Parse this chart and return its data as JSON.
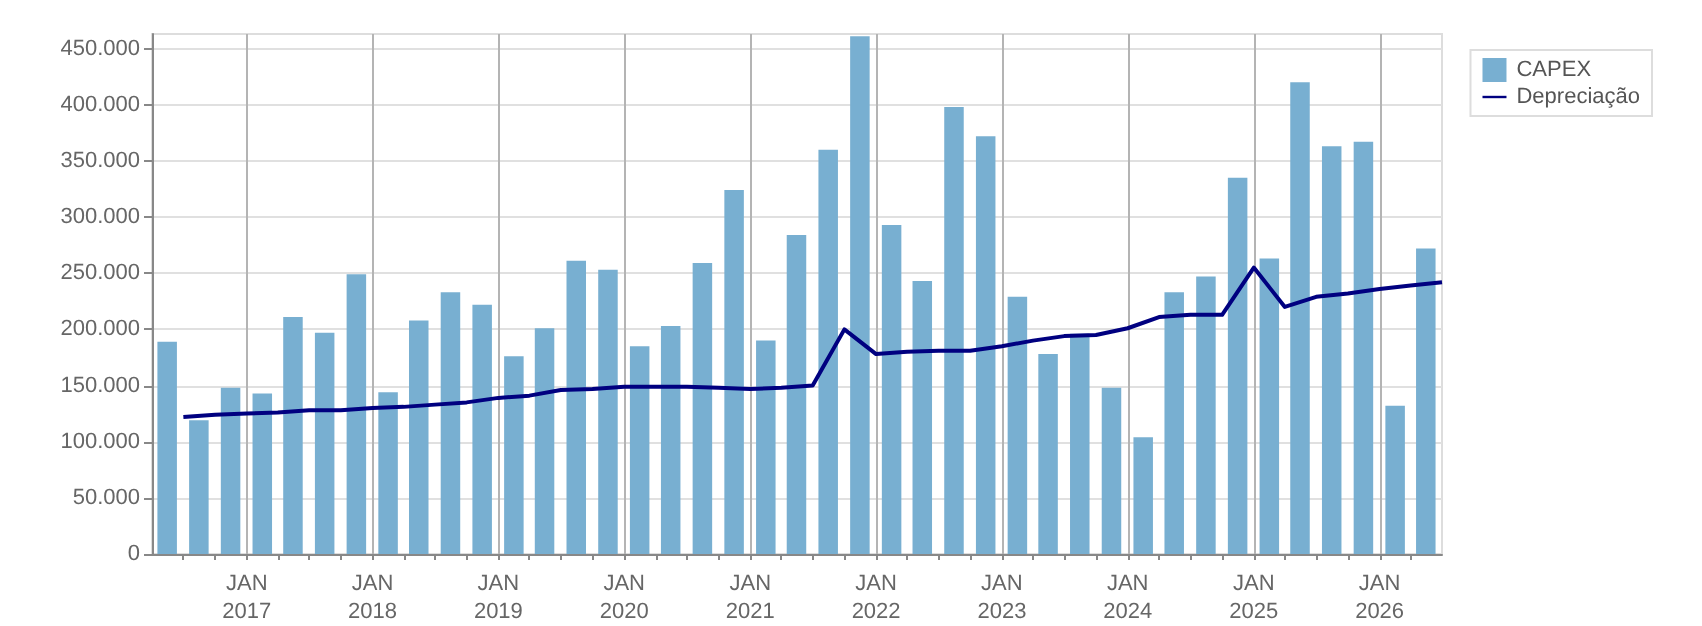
{
  "chart_data": {
    "type": "bar",
    "x": [
      "2016-05-15",
      "2016-08-15",
      "2016-11-15",
      "2017-02-15",
      "2017-05-15",
      "2017-08-15",
      "2017-11-15",
      "2018-02-15",
      "2018-05-15",
      "2018-08-15",
      "2018-11-15",
      "2019-02-15",
      "2019-05-15",
      "2019-08-15",
      "2019-11-15",
      "2020-02-15",
      "2020-05-15",
      "2020-08-15",
      "2020-11-15",
      "2021-02-15",
      "2021-05-15",
      "2021-08-15",
      "2021-11-15",
      "2022-02-15",
      "2022-05-15",
      "2022-08-15",
      "2022-11-15",
      "2023-02-15",
      "2023-05-15",
      "2023-08-15",
      "2023-11-15",
      "2024-02-15",
      "2024-05-15",
      "2024-08-15",
      "2024-11-15",
      "2025-02-15",
      "2025-05-15",
      "2025-08-15",
      "2025-11-15",
      "2026-02-15",
      "2026-05-15"
    ],
    "series": [
      {
        "name": "CAPEX",
        "color": "#78afd1",
        "values": [
          189000,
          119000,
          148000,
          143000,
          211000,
          197000,
          249000,
          144000,
          208000,
          233000,
          222000,
          176000,
          201000,
          261000,
          253000,
          185000,
          203000,
          259000,
          324000,
          190000,
          284000,
          360000,
          461000,
          293000,
          243000,
          398000,
          372000,
          229000,
          178000,
          196000,
          148000,
          104000,
          233000,
          247000,
          335000,
          263000,
          420000,
          363000,
          367000,
          132000,
          272000
        ]
      },
      {
        "name": "Depreciação",
        "type": "line",
        "color": "#000080",
        "marker": "none",
        "x": [
          "2016-07-01",
          "2016-10-01",
          "2017-01-01",
          "2017-04-01",
          "2017-07-01",
          "2017-10-01",
          "2018-01-01",
          "2018-04-01",
          "2018-07-01",
          "2018-10-01",
          "2019-01-01",
          "2019-04-01",
          "2019-07-01",
          "2019-10-01",
          "2020-01-01",
          "2020-04-01",
          "2020-07-01",
          "2020-10-01",
          "2021-01-01",
          "2021-04-01",
          "2021-07-01",
          "2021-10-01",
          "2022-01-01",
          "2022-04-01",
          "2022-07-01",
          "2022-10-01",
          "2023-01-01",
          "2023-04-01",
          "2023-07-01",
          "2023-10-01",
          "2024-01-01",
          "2024-04-01",
          "2024-07-01",
          "2024-10-01",
          "2025-01-01",
          "2025-04-01",
          "2025-07-01",
          "2025-10-01",
          "2026-01-01",
          "2026-04-01",
          "2026-07-01"
        ],
        "values": [
          122000,
          124000,
          125000,
          126000,
          128000,
          128000,
          130000,
          131000,
          133000,
          135000,
          139000,
          141000,
          146000,
          147000,
          149000,
          149000,
          149000,
          148000,
          147000,
          148000,
          150000,
          200000,
          178000,
          180000,
          181000,
          181000,
          185000,
          190000,
          194000,
          195000,
          201000,
          211000,
          213000,
          213000,
          255000,
          220000,
          229000,
          232000,
          236000,
          239000,
          242000
        ]
      }
    ],
    "xlim": [
      "2016-04-01",
      "2026-07-01"
    ],
    "xticks": [
      {
        "value": "2016-07-01",
        "label": null
      },
      {
        "value": "2016-10-01",
        "label": null
      },
      {
        "value": "2017-01-01",
        "label": "JAN\n2017"
      },
      {
        "value": "2017-04-01",
        "label": null
      },
      {
        "value": "2017-07-01",
        "label": null
      },
      {
        "value": "2017-10-01",
        "label": null
      },
      {
        "value": "2018-01-01",
        "label": "JAN\n2018"
      },
      {
        "value": "2018-04-01",
        "label": null
      },
      {
        "value": "2018-07-01",
        "label": null
      },
      {
        "value": "2018-10-01",
        "label": null
      },
      {
        "value": "2019-01-01",
        "label": "JAN\n2019"
      },
      {
        "value": "2019-04-01",
        "label": null
      },
      {
        "value": "2019-07-01",
        "label": null
      },
      {
        "value": "2019-10-01",
        "label": null
      },
      {
        "value": "2020-01-01",
        "label": "JAN\n2020"
      },
      {
        "value": "2020-04-01",
        "label": null
      },
      {
        "value": "2020-07-01",
        "label": null
      },
      {
        "value": "2020-10-01",
        "label": null
      },
      {
        "value": "2021-01-01",
        "label": "JAN\n2021"
      },
      {
        "value": "2021-04-01",
        "label": null
      },
      {
        "value": "2021-07-01",
        "label": null
      },
      {
        "value": "2021-10-01",
        "label": null
      },
      {
        "value": "2022-01-01",
        "label": "JAN\n2022"
      },
      {
        "value": "2022-04-01",
        "label": null
      },
      {
        "value": "2022-07-01",
        "label": null
      },
      {
        "value": "2022-10-01",
        "label": null
      },
      {
        "value": "2023-01-01",
        "label": "JAN\n2023"
      },
      {
        "value": "2023-04-01",
        "label": null
      },
      {
        "value": "2023-07-01",
        "label": null
      },
      {
        "value": "2023-10-01",
        "label": null
      },
      {
        "value": "2024-01-01",
        "label": "JAN\n2024"
      },
      {
        "value": "2024-04-01",
        "label": null
      },
      {
        "value": "2024-07-01",
        "label": null
      },
      {
        "value": "2024-10-01",
        "label": null
      },
      {
        "value": "2025-01-01",
        "label": "JAN\n2025"
      },
      {
        "value": "2025-04-01",
        "label": null
      },
      {
        "value": "2025-07-01",
        "label": null
      },
      {
        "value": "2025-10-01",
        "label": null
      },
      {
        "value": "2026-01-01",
        "label": "JAN\n2026"
      },
      {
        "value": "2026-04-01",
        "label": null
      }
    ],
    "ylim": [
      0,
      463000
    ],
    "yticks": [
      0,
      {
        "value": 50000,
        "label": "50.000"
      },
      {
        "value": 100000,
        "label": "100.000"
      },
      {
        "value": 150000,
        "label": "150.000"
      },
      {
        "value": 200000,
        "label": "200.000"
      },
      {
        "value": 250000,
        "label": "250.000"
      },
      {
        "value": 300000,
        "label": "300.000"
      },
      {
        "value": 350000,
        "label": "350.000"
      },
      {
        "value": 400000,
        "label": "400.000"
      },
      {
        "value": 450000,
        "label": "450.000"
      }
    ],
    "grid": true,
    "legend": "top right"
  }
}
